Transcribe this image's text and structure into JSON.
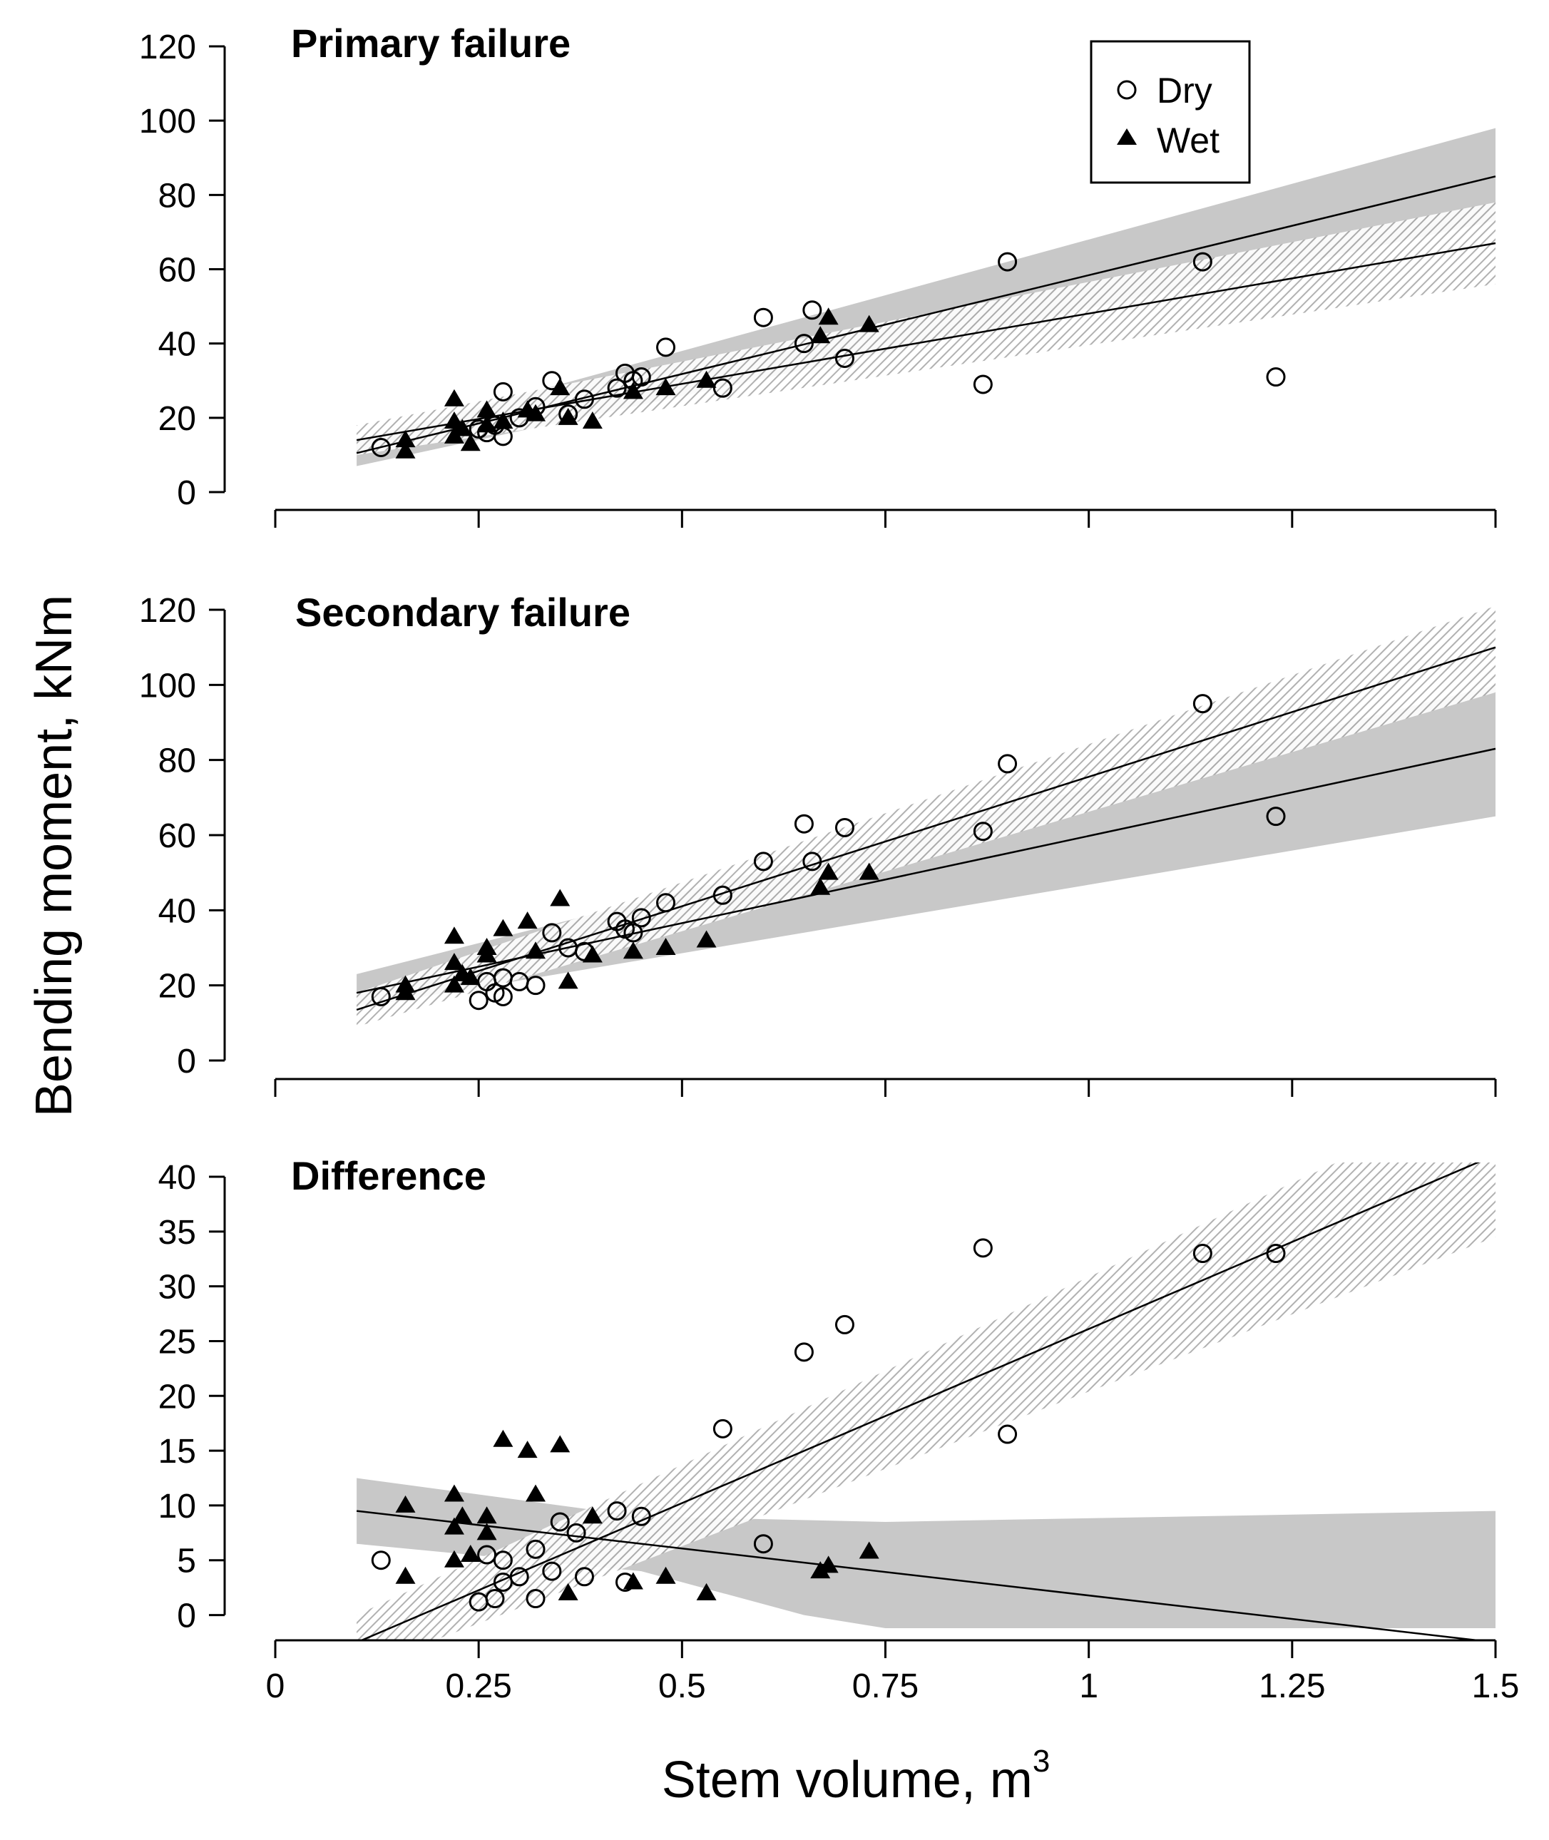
{
  "figure": {
    "y_axis_title": "Bending moment, kNm",
    "x_axis_title": "Stem volume, m",
    "x_axis_title_superscript": "3",
    "legend": {
      "placement": "top-right of first panel",
      "entries": [
        "Dry",
        "Wet"
      ]
    },
    "x_ticks": [
      0,
      0.25,
      0.5,
      0.75,
      1,
      1.25,
      1.5
    ],
    "x_tick_labels": [
      "0",
      "0.25",
      "0.5",
      "0.75",
      "1",
      "1.25",
      "1.5"
    ],
    "colors": {
      "band_solid": "#c8c8c8",
      "band_hatched": "#a8a8a8",
      "marks": "#000000"
    }
  },
  "chart_data": [
    {
      "type": "scatter",
      "title": "Primary failure",
      "xlim": [
        0,
        1.5
      ],
      "ylim": [
        0,
        120
      ],
      "y_ticks": [
        0,
        20,
        40,
        60,
        80,
        100,
        120
      ],
      "y_tick_labels": [
        "0",
        "20",
        "40",
        "60",
        "80",
        "100",
        "120"
      ],
      "series": [
        {
          "name": "Dry",
          "marker": "open-circle",
          "points": [
            [
              0.13,
              12
            ],
            [
              0.25,
              17
            ],
            [
              0.26,
              16
            ],
            [
              0.27,
              18
            ],
            [
              0.28,
              15
            ],
            [
              0.28,
              27
            ],
            [
              0.3,
              20
            ],
            [
              0.32,
              23
            ],
            [
              0.34,
              30
            ],
            [
              0.36,
              21
            ],
            [
              0.38,
              25
            ],
            [
              0.42,
              28
            ],
            [
              0.43,
              32
            ],
            [
              0.44,
              30
            ],
            [
              0.45,
              31
            ],
            [
              0.48,
              39
            ],
            [
              0.55,
              28
            ],
            [
              0.6,
              47
            ],
            [
              0.65,
              40
            ],
            [
              0.66,
              49
            ],
            [
              0.7,
              36
            ],
            [
              0.87,
              29
            ],
            [
              0.9,
              62
            ],
            [
              1.14,
              62
            ],
            [
              1.23,
              31
            ]
          ]
        },
        {
          "name": "Wet",
          "marker": "filled-triangle",
          "points": [
            [
              0.16,
              14
            ],
            [
              0.16,
              11
            ],
            [
              0.22,
              25
            ],
            [
              0.22,
              19
            ],
            [
              0.22,
              15
            ],
            [
              0.23,
              17
            ],
            [
              0.24,
              13
            ],
            [
              0.26,
              22
            ],
            [
              0.26,
              18
            ],
            [
              0.28,
              19
            ],
            [
              0.31,
              22
            ],
            [
              0.32,
              21
            ],
            [
              0.35,
              28
            ],
            [
              0.36,
              20
            ],
            [
              0.39,
              19
            ],
            [
              0.44,
              27
            ],
            [
              0.48,
              28
            ],
            [
              0.53,
              30
            ],
            [
              0.67,
              42
            ],
            [
              0.68,
              47
            ],
            [
              0.73,
              45
            ]
          ]
        }
      ],
      "fits": [
        {
          "x": [
            0.1,
            1.5
          ],
          "y": [
            10.5,
            85
          ],
          "band_style": "solid-grey",
          "band_lower": [
            7,
            73
          ],
          "band_upper": [
            14,
            98
          ]
        },
        {
          "x": [
            0.1,
            1.5
          ],
          "y": [
            14,
            67
          ],
          "band_style": "hatched",
          "band_lower": [
            10,
            56
          ],
          "band_upper": [
            18,
            78
          ]
        }
      ]
    },
    {
      "type": "scatter",
      "title": "Secondary failure",
      "xlim": [
        0,
        1.5
      ],
      "ylim": [
        0,
        120
      ],
      "y_ticks": [
        0,
        20,
        40,
        60,
        80,
        100,
        120
      ],
      "y_tick_labels": [
        "0",
        "20",
        "40",
        "60",
        "80",
        "100",
        "120"
      ],
      "series": [
        {
          "name": "Dry",
          "marker": "open-circle",
          "points": [
            [
              0.13,
              17
            ],
            [
              0.25,
              16
            ],
            [
              0.26,
              21
            ],
            [
              0.27,
              18
            ],
            [
              0.28,
              17
            ],
            [
              0.28,
              22
            ],
            [
              0.3,
              21
            ],
            [
              0.32,
              20
            ],
            [
              0.34,
              34
            ],
            [
              0.36,
              30
            ],
            [
              0.38,
              29
            ],
            [
              0.42,
              37
            ],
            [
              0.43,
              35
            ],
            [
              0.44,
              34
            ],
            [
              0.45,
              38
            ],
            [
              0.48,
              42
            ],
            [
              0.55,
              44
            ],
            [
              0.6,
              53
            ],
            [
              0.65,
              63
            ],
            [
              0.66,
              53
            ],
            [
              0.7,
              62
            ],
            [
              0.87,
              61
            ],
            [
              0.9,
              79
            ],
            [
              1.14,
              95
            ],
            [
              1.23,
              65
            ]
          ]
        },
        {
          "name": "Wet",
          "marker": "filled-triangle",
          "points": [
            [
              0.16,
              20
            ],
            [
              0.16,
              18
            ],
            [
              0.22,
              33
            ],
            [
              0.22,
              26
            ],
            [
              0.22,
              20
            ],
            [
              0.23,
              23
            ],
            [
              0.24,
              22
            ],
            [
              0.26,
              30
            ],
            [
              0.26,
              28
            ],
            [
              0.28,
              35
            ],
            [
              0.31,
              37
            ],
            [
              0.32,
              29
            ],
            [
              0.35,
              43
            ],
            [
              0.36,
              21
            ],
            [
              0.39,
              28
            ],
            [
              0.44,
              29
            ],
            [
              0.48,
              30
            ],
            [
              0.53,
              32
            ],
            [
              0.67,
              46
            ],
            [
              0.68,
              50
            ],
            [
              0.73,
              50
            ]
          ]
        }
      ],
      "fits": [
        {
          "x": [
            0.1,
            1.5
          ],
          "y": [
            13.5,
            110
          ],
          "band_style": "hatched",
          "band_lower": [
            9,
            98
          ],
          "band_upper": [
            18,
            121
          ]
        },
        {
          "x": [
            0.1,
            1.5
          ],
          "y": [
            18,
            83
          ],
          "band_style": "solid-grey",
          "band_lower": [
            14,
            65
          ],
          "band_upper": [
            23,
            100
          ]
        }
      ]
    },
    {
      "type": "scatter",
      "title": "Difference",
      "xlim": [
        0,
        1.5
      ],
      "ylim": [
        -1.2,
        40
      ],
      "y_ticks": [
        0,
        5,
        10,
        15,
        20,
        25,
        30,
        35,
        40
      ],
      "y_tick_labels": [
        "0",
        "5",
        "10",
        "15",
        "20",
        "25",
        "30",
        "35",
        "40"
      ],
      "series": [
        {
          "name": "Dry",
          "marker": "open-circle",
          "points": [
            [
              0.13,
              5
            ],
            [
              0.25,
              1.2
            ],
            [
              0.26,
              5.5
            ],
            [
              0.27,
              1.5
            ],
            [
              0.28,
              3
            ],
            [
              0.28,
              5
            ],
            [
              0.3,
              3.5
            ],
            [
              0.32,
              6
            ],
            [
              0.32,
              1.5
            ],
            [
              0.34,
              4
            ],
            [
              0.35,
              8.5
            ],
            [
              0.37,
              7.5
            ],
            [
              0.38,
              3.5
            ],
            [
              0.42,
              9.5
            ],
            [
              0.43,
              3
            ],
            [
              0.45,
              9
            ],
            [
              0.55,
              17
            ],
            [
              0.6,
              6.5
            ],
            [
              0.65,
              24
            ],
            [
              0.7,
              26.5
            ],
            [
              0.87,
              33.5
            ],
            [
              0.9,
              16.5
            ],
            [
              1.14,
              33
            ],
            [
              1.23,
              33
            ]
          ]
        },
        {
          "name": "Wet",
          "marker": "filled-triangle",
          "points": [
            [
              0.16,
              10
            ],
            [
              0.16,
              3.5
            ],
            [
              0.22,
              11
            ],
            [
              0.22,
              8
            ],
            [
              0.22,
              5
            ],
            [
              0.23,
              9
            ],
            [
              0.24,
              5.5
            ],
            [
              0.26,
              9
            ],
            [
              0.26,
              7.5
            ],
            [
              0.28,
              16
            ],
            [
              0.31,
              15
            ],
            [
              0.32,
              11
            ],
            [
              0.35,
              15.5
            ],
            [
              0.36,
              2
            ],
            [
              0.39,
              9
            ],
            [
              0.44,
              3
            ],
            [
              0.48,
              3.5
            ],
            [
              0.53,
              2
            ],
            [
              0.67,
              4
            ],
            [
              0.68,
              4.5
            ],
            [
              0.73,
              5.8
            ]
          ]
        }
      ],
      "fits": [
        {
          "x": [
            0.1,
            1.5
          ],
          "y": [
            9.5,
            -2.5
          ],
          "band_style": "solid-grey",
          "band_lower_pts": [
            [
              0.1,
              6.5
            ],
            [
              0.45,
              4
            ],
            [
              0.65,
              0
            ],
            [
              0.75,
              -1.2
            ],
            [
              1.5,
              -1.2
            ]
          ],
          "band_upper_pts": [
            [
              0.1,
              12.5
            ],
            [
              0.45,
              9
            ],
            [
              0.75,
              8.5
            ],
            [
              1.5,
              9.5
            ]
          ]
        },
        {
          "x": [
            0.1,
            1.5
          ],
          "y": [
            -2.5,
            42
          ],
          "band_style": "hatched",
          "band_lower": [
            -5,
            34.5
          ],
          "band_upper": [
            0,
            48
          ]
        }
      ]
    }
  ]
}
